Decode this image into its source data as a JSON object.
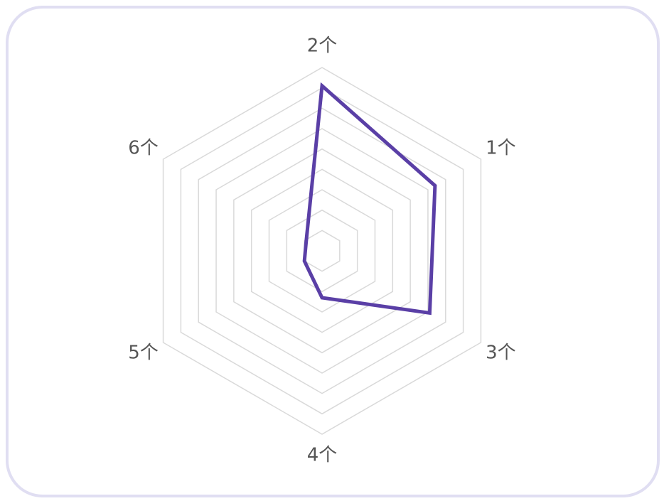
{
  "chart_data": {
    "type": "radar",
    "categories": [
      "2个",
      "1个",
      "3个",
      "4个",
      "5个",
      "6个"
    ],
    "series": [
      {
        "color": "#5a3fa6",
        "values": [
          8.1,
          6.4,
          6.1,
          2.3,
          1.0,
          0.9
        ]
      }
    ],
    "rlim": [
      0,
      9
    ],
    "rticks": [
      1,
      2,
      3,
      4,
      5,
      6,
      7,
      8,
      9
    ],
    "grid": true
  }
}
